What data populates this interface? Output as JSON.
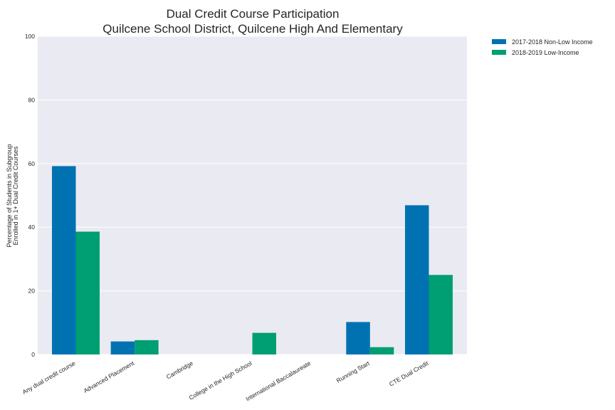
{
  "chart_data": {
    "type": "bar",
    "title": [
      "Dual Credit Course Participation",
      "Quilcene School District, Quilcene High And Elementary"
    ],
    "xlabel": "",
    "ylabel": [
      "Percentage of Students in Subgroup",
      "Enrolled in 1+ Dual Credit Courses"
    ],
    "ylim": [
      0,
      100
    ],
    "yticks": [
      0,
      20,
      40,
      60,
      80,
      100
    ],
    "grid": true,
    "legend_position": "outside-top-right",
    "categories": [
      "Any dual credit course",
      "Advanced Placement",
      "Cambridge",
      "College in the High School",
      "International Baccalaureate",
      "Running Start",
      "CTE Dual Credit"
    ],
    "series": [
      {
        "name": "2017-2018 Non-Low Income",
        "color": "#0072b2",
        "values": [
          59.2,
          4.1,
          0,
          0,
          0,
          10.2,
          46.9
        ]
      },
      {
        "name": "2018-2019 Low-Income",
        "color": "#009e73",
        "values": [
          38.6,
          4.5,
          0,
          6.8,
          0,
          2.3,
          25.0
        ]
      }
    ]
  }
}
